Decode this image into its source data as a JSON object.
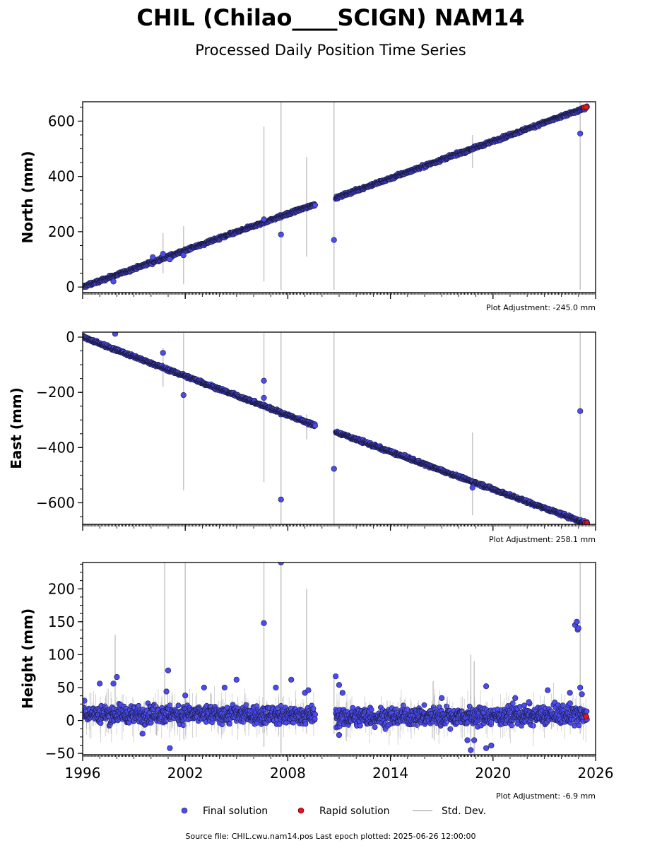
{
  "chart_data": {
    "type": "scatter",
    "title": "CHIL (Chilao____SCIGN) NAM14",
    "subtitle": "Processed Daily Position Time Series",
    "x_axis": {
      "ticks": [
        1996,
        2002,
        2008,
        2014,
        2020,
        2026
      ],
      "range": [
        1996,
        2026
      ]
    },
    "panels": [
      {
        "id": "north",
        "ylabel": "North (mm)",
        "ylim": [
          -20,
          670
        ],
        "yticks": [
          0,
          200,
          400,
          600
        ],
        "adjustment": "Plot Adjustment: -245.0 mm",
        "trend": {
          "segments": [
            {
              "x0": 1996.0,
              "y0": 0,
              "x1": 2009.6,
              "y1": 300
            },
            {
              "x0": 2010.8,
              "y0": 322,
              "x1": 2025.5,
              "y1": 650
            }
          ],
          "noise": 4
        },
        "outliers": [
          [
            1997.8,
            20
          ],
          [
            2000.1,
            108
          ],
          [
            2000.7,
            120
          ],
          [
            2001.1,
            100
          ],
          [
            2001.9,
            115
          ],
          [
            2006.6,
            245
          ],
          [
            2007.6,
            190
          ],
          [
            2010.7,
            170
          ],
          [
            2025.1,
            555
          ]
        ],
        "std_spikes": [
          [
            2000.7,
            50,
            195
          ],
          [
            2001.9,
            10,
            220
          ],
          [
            2006.6,
            20,
            580
          ],
          [
            2007.6,
            -10,
            670
          ],
          [
            2009.1,
            110,
            470
          ],
          [
            2010.7,
            -10,
            670
          ],
          [
            2018.8,
            430,
            550
          ],
          [
            2025.1,
            -10,
            670
          ]
        ],
        "rapid": [
          [
            2025.35,
            650
          ],
          [
            2025.45,
            651
          ]
        ]
      },
      {
        "id": "east",
        "ylabel": "East (mm)",
        "ylim": [
          -678,
          18
        ],
        "yticks": [
          0,
          -200,
          -400,
          -600
        ],
        "adjustment": "Plot Adjustment: 258.1 mm",
        "trend": {
          "segments": [
            {
              "x0": 1996.0,
              "y0": 0,
              "x1": 2009.6,
              "y1": -320
            },
            {
              "x0": 2010.8,
              "y0": -343,
              "x1": 2025.5,
              "y1": -675
            }
          ],
          "noise": 4
        },
        "outliers": [
          [
            1997.9,
            12
          ],
          [
            2000.7,
            -57
          ],
          [
            2001.9,
            -210
          ],
          [
            2006.6,
            -158
          ],
          [
            2006.6,
            -220
          ],
          [
            2007.6,
            -588
          ],
          [
            2010.7,
            -477
          ],
          [
            2018.8,
            -545
          ],
          [
            2025.1,
            -268
          ]
        ],
        "std_spikes": [
          [
            2000.7,
            -180,
            -40
          ],
          [
            2001.9,
            -555,
            15
          ],
          [
            2006.6,
            -525,
            15
          ],
          [
            2007.6,
            -678,
            18
          ],
          [
            2009.1,
            -370,
            -280
          ],
          [
            2010.7,
            -678,
            18
          ],
          [
            2018.8,
            -645,
            -345
          ],
          [
            2025.1,
            -678,
            18
          ]
        ],
        "rapid": [
          [
            2025.4,
            -673
          ],
          [
            2025.5,
            -674
          ]
        ]
      },
      {
        "id": "height",
        "ylabel": "Height (mm)",
        "ylim": [
          -52,
          240
        ],
        "yticks": [
          -50,
          0,
          50,
          100,
          150,
          200
        ],
        "adjustment": "Plot Adjustment: -6.9 mm",
        "trend": {
          "segments": [
            {
              "x0": 1996.0,
              "y0": 10,
              "x1": 2009.6,
              "y1": 8
            },
            {
              "x0": 2010.8,
              "y0": 5,
              "x1": 2025.5,
              "y1": 8
            }
          ],
          "noise": 10
        },
        "outliers": [
          [
            1996.1,
            30
          ],
          [
            1997.0,
            56
          ],
          [
            1997.8,
            56
          ],
          [
            1998.0,
            66
          ],
          [
            1999.5,
            -20
          ],
          [
            2000.9,
            44
          ],
          [
            2001.0,
            76
          ],
          [
            2001.1,
            -42
          ],
          [
            2002.0,
            38
          ],
          [
            2003.1,
            50
          ],
          [
            2004.3,
            50
          ],
          [
            2005.0,
            62
          ],
          [
            2006.6,
            148
          ],
          [
            2007.3,
            50
          ],
          [
            2007.6,
            240
          ],
          [
            2008.2,
            62
          ],
          [
            2009.0,
            42
          ],
          [
            2009.2,
            46
          ],
          [
            2010.8,
            67
          ],
          [
            2011.0,
            54
          ],
          [
            2011.2,
            42
          ],
          [
            2011.0,
            -22
          ],
          [
            2017.0,
            34
          ],
          [
            2018.5,
            -30
          ],
          [
            2018.7,
            -45
          ],
          [
            2018.9,
            -30
          ],
          [
            2019.6,
            52
          ],
          [
            2019.6,
            -42
          ],
          [
            2019.9,
            -38
          ],
          [
            2021.3,
            34
          ],
          [
            2022.1,
            28
          ],
          [
            2023.2,
            46
          ],
          [
            2024.5,
            42
          ],
          [
            2024.5,
            26
          ],
          [
            2024.8,
            145
          ],
          [
            2024.9,
            150
          ],
          [
            2024.95,
            138
          ],
          [
            2025.0,
            140
          ],
          [
            2025.1,
            50
          ],
          [
            2025.2,
            40
          ]
        ],
        "std_spikes": [
          [
            2000.8,
            -10,
            240
          ],
          [
            2002.0,
            -10,
            240
          ],
          [
            2006.6,
            -40,
            240
          ],
          [
            2007.6,
            -50,
            240
          ],
          [
            2009.1,
            -20,
            200
          ],
          [
            2010.7,
            -20,
            70
          ],
          [
            2018.7,
            -52,
            100
          ],
          [
            2018.9,
            -52,
            90
          ],
          [
            2025.1,
            -20,
            240
          ],
          [
            1997.9,
            5,
            130
          ],
          [
            2016.5,
            -10,
            60
          ]
        ],
        "rapid": [
          [
            2025.45,
            6
          ]
        ]
      }
    ],
    "legend": {
      "placement": "bottom-center",
      "entries": [
        {
          "label": "Final solution",
          "color": "#4b4bf0"
        },
        {
          "label": "Rapid solution",
          "color": "#e8131a"
        },
        {
          "label": "Std. Dev.",
          "color": "#c8c8c8"
        }
      ]
    },
    "footer": "Source file: CHIL.cwu.nam14.pos  Last epoch plotted: 2025-06-26 12:00:00",
    "colors": {
      "final": "#4b4bf0",
      "final_edge": "#1a1a40",
      "rapid": "#e8131a",
      "std": "#c8c8c8"
    }
  }
}
